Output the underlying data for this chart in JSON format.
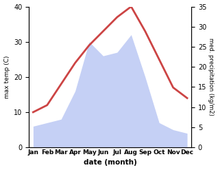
{
  "months": [
    "Jan",
    "Feb",
    "Mar",
    "Apr",
    "May",
    "Jun",
    "Jul",
    "Aug",
    "Sep",
    "Oct",
    "Nov",
    "Dec"
  ],
  "temperature": [
    10,
    12,
    18,
    24,
    29,
    33,
    37,
    40,
    33,
    25,
    17,
    14
  ],
  "precipitation": [
    6,
    7,
    8,
    16,
    30,
    26,
    27,
    32,
    20,
    7,
    5,
    4
  ],
  "temp_color": "#cc4444",
  "precip_fill_color": "#c5d0f5",
  "temp_ylim": [
    0,
    40
  ],
  "precip_ylim": [
    0,
    35
  ],
  "temp_yticks": [
    0,
    10,
    20,
    30,
    40
  ],
  "precip_yticks": [
    0,
    5,
    10,
    15,
    20,
    25,
    30,
    35
  ],
  "ylabel_left": "max temp (C)",
  "ylabel_right": "med. precipitation (kg/m2)",
  "xlabel": "date (month)",
  "background_color": "#ffffff"
}
